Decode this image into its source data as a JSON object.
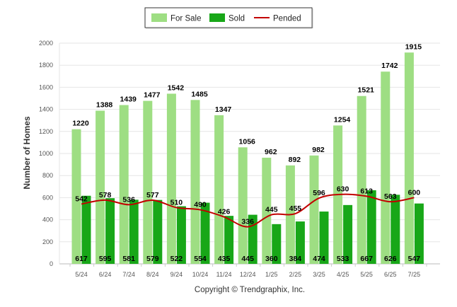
{
  "chart_data": {
    "type": "bar",
    "categories": [
      "5/24",
      "6/24",
      "7/24",
      "8/24",
      "9/24",
      "10/24",
      "11/24",
      "12/24",
      "1/25",
      "2/25",
      "3/25",
      "4/25",
      "5/25",
      "6/25",
      "7/25"
    ],
    "series": [
      {
        "name": "For Sale",
        "type": "bar",
        "color": "#9ede83",
        "values": [
          1220,
          1388,
          1439,
          1477,
          1542,
          1485,
          1347,
          1056,
          962,
          892,
          982,
          1254,
          1521,
          1742,
          1915
        ]
      },
      {
        "name": "Sold",
        "type": "bar",
        "color": "#18a718",
        "values": [
          617,
          595,
          581,
          579,
          522,
          554,
          435,
          445,
          360,
          384,
          474,
          533,
          667,
          626,
          547
        ]
      },
      {
        "name": "Pended",
        "type": "line",
        "color": "#c20000",
        "values": [
          542,
          578,
          536,
          577,
          510,
          490,
          426,
          336,
          445,
          455,
          596,
          630,
          613,
          563,
          600
        ]
      }
    ],
    "ylabel": "Number of Homes",
    "xlabel": "",
    "ylim": [
      0,
      2000
    ],
    "yticks": [
      0,
      200,
      400,
      600,
      800,
      1000,
      1200,
      1400,
      1600,
      1800,
      2000
    ],
    "grid": true,
    "legend_position": "top-center",
    "credit": "Copyright © Trendgraphix, Inc."
  }
}
